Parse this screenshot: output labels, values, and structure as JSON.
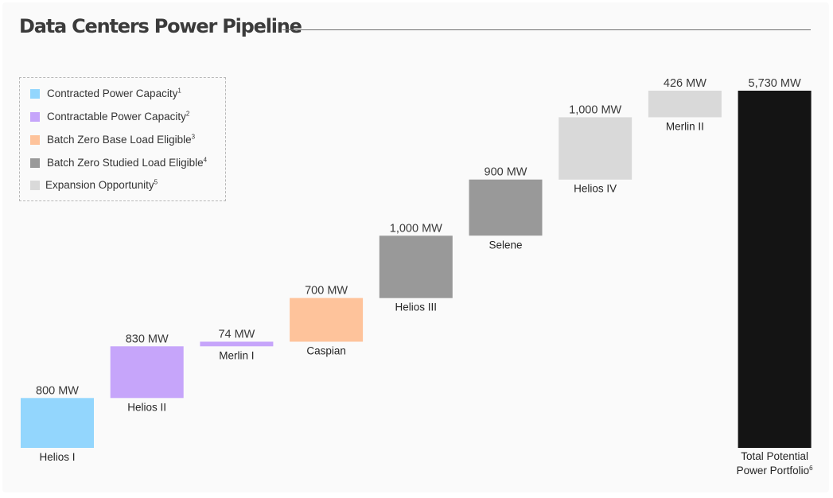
{
  "title": "Data Centers Power Pipeline",
  "legend": [
    {
      "label": "Contracted Power Capacity",
      "sup": "1",
      "color": "#93d6fd"
    },
    {
      "label": "Contractable Power Capacity",
      "sup": "2",
      "color": "#c6a5fa"
    },
    {
      "label": "Batch Zero Base Load Eligible",
      "sup": "3",
      "color": "#fec39b"
    },
    {
      "label": "Batch Zero Studied Load Eligible",
      "sup": "4",
      "color": "#999999"
    },
    {
      "label": "Expansion Opportunity",
      "sup": "5",
      "color": "#d9d9d9"
    }
  ],
  "chart_data": {
    "type": "bar",
    "subtype": "waterfall",
    "unit": "MW",
    "categories": [
      "Helios I",
      "Helios II",
      "Merlin I",
      "Caspian",
      "Helios III",
      "Selene",
      "Helios IV",
      "Merlin II",
      "Total Potential Power Portfolio"
    ],
    "category_sups": [
      "",
      "",
      "",
      "",
      "",
      "",
      "",
      "",
      "6"
    ],
    "values": [
      800,
      830,
      74,
      700,
      1000,
      900,
      1000,
      426,
      5730
    ],
    "value_labels": [
      "800 MW",
      "830 MW",
      "74 MW",
      "700 MW",
      "1,000 MW",
      "900 MW",
      "1,000 MW",
      "426 MW",
      "5,730 MW"
    ],
    "colors": [
      "#93d6fd",
      "#c6a5fa",
      "#c6a5fa",
      "#fec39b",
      "#999999",
      "#999999",
      "#d9d9d9",
      "#d9d9d9",
      "#141414"
    ],
    "is_total": [
      false,
      false,
      false,
      false,
      false,
      false,
      false,
      false,
      true
    ]
  }
}
